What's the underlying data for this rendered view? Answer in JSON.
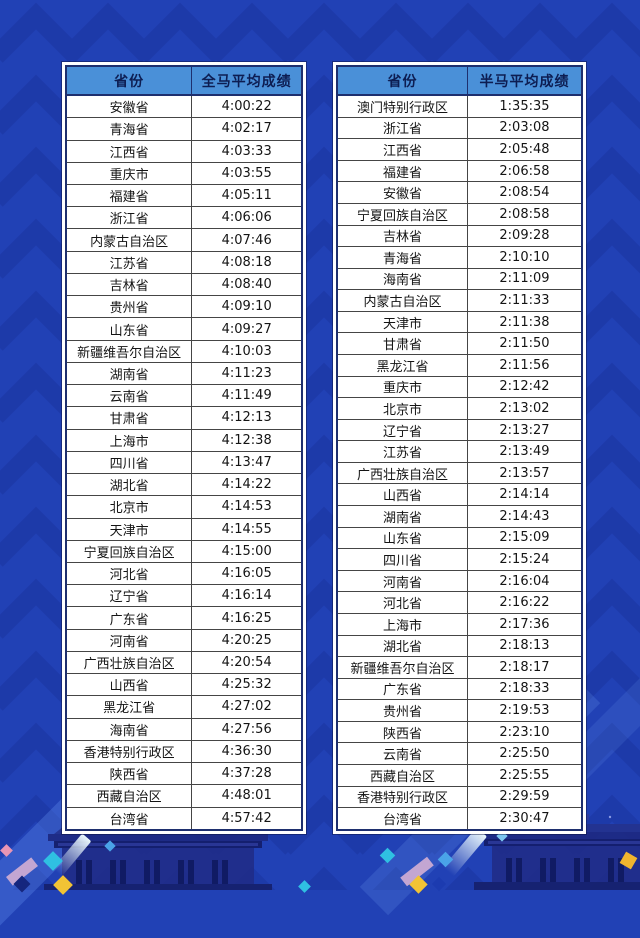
{
  "palette": {
    "background_blue": "#2141b5",
    "pattern_blue": "#1a35a2",
    "header_blue": "#4a90d8",
    "header_text_navy": "#0d1d52",
    "table_grid": "#454545",
    "confetti_cyan": "#2fc0e2",
    "confetti_yellow": "#f2c335",
    "confetti_lavender": "#c3a6d2",
    "confetti_blue": "#4aa3e8",
    "confetti_pink": "#e895b5",
    "building_navy": "#202d8a"
  },
  "chart_data": [
    {
      "type": "table",
      "title": "全马平均成绩表",
      "columns": [
        "省份",
        "全马平均成绩"
      ],
      "rows": [
        [
          "安徽省",
          "4:00:22"
        ],
        [
          "青海省",
          "4:02:17"
        ],
        [
          "江西省",
          "4:03:33"
        ],
        [
          "重庆市",
          "4:03:55"
        ],
        [
          "福建省",
          "4:05:11"
        ],
        [
          "浙江省",
          "4:06:06"
        ],
        [
          "内蒙古自治区",
          "4:07:46"
        ],
        [
          "江苏省",
          "4:08:18"
        ],
        [
          "吉林省",
          "4:08:40"
        ],
        [
          "贵州省",
          "4:09:10"
        ],
        [
          "山东省",
          "4:09:27"
        ],
        [
          "新疆维吾尔自治区",
          "4:10:03"
        ],
        [
          "湖南省",
          "4:11:23"
        ],
        [
          "云南省",
          "4:11:49"
        ],
        [
          "甘肃省",
          "4:12:13"
        ],
        [
          "上海市",
          "4:12:38"
        ],
        [
          "四川省",
          "4:13:47"
        ],
        [
          "湖北省",
          "4:14:22"
        ],
        [
          "北京市",
          "4:14:53"
        ],
        [
          "天津市",
          "4:14:55"
        ],
        [
          "宁夏回族自治区",
          "4:15:00"
        ],
        [
          "河北省",
          "4:16:05"
        ],
        [
          "辽宁省",
          "4:16:14"
        ],
        [
          "广东省",
          "4:16:25"
        ],
        [
          "河南省",
          "4:20:25"
        ],
        [
          "广西壮族自治区",
          "4:20:54"
        ],
        [
          "山西省",
          "4:25:32"
        ],
        [
          "黑龙江省",
          "4:27:02"
        ],
        [
          "海南省",
          "4:27:56"
        ],
        [
          "香港特别行政区",
          "4:36:30"
        ],
        [
          "陕西省",
          "4:37:28"
        ],
        [
          "西藏自治区",
          "4:48:01"
        ],
        [
          "台湾省",
          "4:57:42"
        ]
      ]
    },
    {
      "type": "table",
      "title": "半马平均成绩表",
      "columns": [
        "省份",
        "半马平均成绩"
      ],
      "rows": [
        [
          "澳门特别行政区",
          "1:35:35"
        ],
        [
          "浙江省",
          "2:03:08"
        ],
        [
          "江西省",
          "2:05:48"
        ],
        [
          "福建省",
          "2:06:58"
        ],
        [
          "安徽省",
          "2:08:54"
        ],
        [
          "宁夏回族自治区",
          "2:08:58"
        ],
        [
          "吉林省",
          "2:09:28"
        ],
        [
          "青海省",
          "2:10:10"
        ],
        [
          "海南省",
          "2:11:09"
        ],
        [
          "内蒙古自治区",
          "2:11:33"
        ],
        [
          "天津市",
          "2:11:38"
        ],
        [
          "甘肃省",
          "2:11:50"
        ],
        [
          "黑龙江省",
          "2:11:56"
        ],
        [
          "重庆市",
          "2:12:42"
        ],
        [
          "北京市",
          "2:13:02"
        ],
        [
          "辽宁省",
          "2:13:27"
        ],
        [
          "江苏省",
          "2:13:49"
        ],
        [
          "广西壮族自治区",
          "2:13:57"
        ],
        [
          "山西省",
          "2:14:14"
        ],
        [
          "湖南省",
          "2:14:43"
        ],
        [
          "山东省",
          "2:15:09"
        ],
        [
          "四川省",
          "2:15:24"
        ],
        [
          "河南省",
          "2:16:04"
        ],
        [
          "河北省",
          "2:16:22"
        ],
        [
          "上海市",
          "2:17:36"
        ],
        [
          "湖北省",
          "2:18:13"
        ],
        [
          "新疆维吾尔自治区",
          "2:18:17"
        ],
        [
          "广东省",
          "2:18:33"
        ],
        [
          "贵州省",
          "2:19:53"
        ],
        [
          "陕西省",
          "2:23:10"
        ],
        [
          "云南省",
          "2:25:50"
        ],
        [
          "西藏自治区",
          "2:25:55"
        ],
        [
          "香港特别行政区",
          "2:29:59"
        ],
        [
          "台湾省",
          "2:30:47"
        ]
      ]
    }
  ]
}
